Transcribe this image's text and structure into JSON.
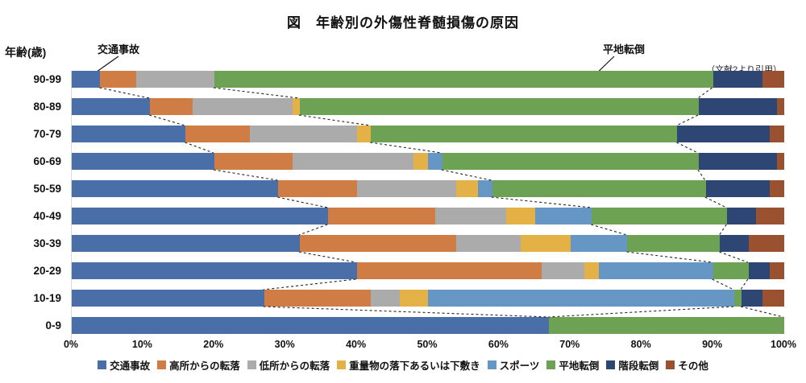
{
  "title": "図　年齢別の外傷性脊髄損傷の原因",
  "y_axis_title": "年齢(歳)",
  "citation": "（文献2より引用）",
  "annotations": [
    {
      "label": "交通事故",
      "points_to": "traffic-accident segment of 90-99 bar"
    },
    {
      "label": "平地転倒",
      "points_to": "ground-level-fall segment of 90-99 bar"
    }
  ],
  "chart_data": {
    "type": "bar",
    "orientation": "horizontal",
    "stacked": true,
    "unit": "%",
    "xlim": [
      0,
      100
    ],
    "grid": false,
    "legend_position": "bottom",
    "x_ticks": [
      "0%",
      "10%",
      "20%",
      "30%",
      "40%",
      "50%",
      "60%",
      "70%",
      "80%",
      "90%",
      "100%"
    ],
    "categories": [
      "90-99",
      "80-89",
      "70-79",
      "60-69",
      "50-59",
      "40-49",
      "30-39",
      "20-29",
      "10-19",
      "0-9"
    ],
    "series": [
      {
        "name": "交通事故",
        "color": "#4a6fa8",
        "values": [
          4,
          11,
          16,
          20,
          29,
          36,
          32,
          40,
          27,
          67
        ]
      },
      {
        "name": "高所からの転落",
        "color": "#d07c45",
        "values": [
          5,
          6,
          9,
          11,
          11,
          15,
          22,
          26,
          15,
          0
        ]
      },
      {
        "name": "低所からの転落",
        "color": "#ababab",
        "values": [
          11,
          14,
          15,
          17,
          14,
          10,
          9,
          6,
          4,
          0
        ]
      },
      {
        "name": "重量物の落下あるいは下敷き",
        "color": "#e3b145",
        "values": [
          0,
          1,
          2,
          2,
          3,
          4,
          7,
          2,
          4,
          0
        ]
      },
      {
        "name": "スポーツ",
        "color": "#6596c4",
        "values": [
          0,
          0,
          0,
          2,
          2,
          8,
          8,
          16,
          43,
          0
        ]
      },
      {
        "name": "平地転倒",
        "color": "#6da153",
        "values": [
          70,
          56,
          43,
          36,
          30,
          19,
          13,
          5,
          1,
          33
        ]
      },
      {
        "name": "階段転倒",
        "color": "#2e4674",
        "values": [
          7,
          11,
          13,
          11,
          9,
          4,
          4,
          3,
          3,
          0
        ]
      },
      {
        "name": "その他",
        "color": "#99512f",
        "values": [
          3,
          1,
          2,
          1,
          2,
          4,
          5,
          2,
          3,
          0
        ]
      }
    ],
    "series_connector_lines": "dashed lines between bars at end of 交通事故, start of 平地転倒 and end of 平地転倒"
  }
}
